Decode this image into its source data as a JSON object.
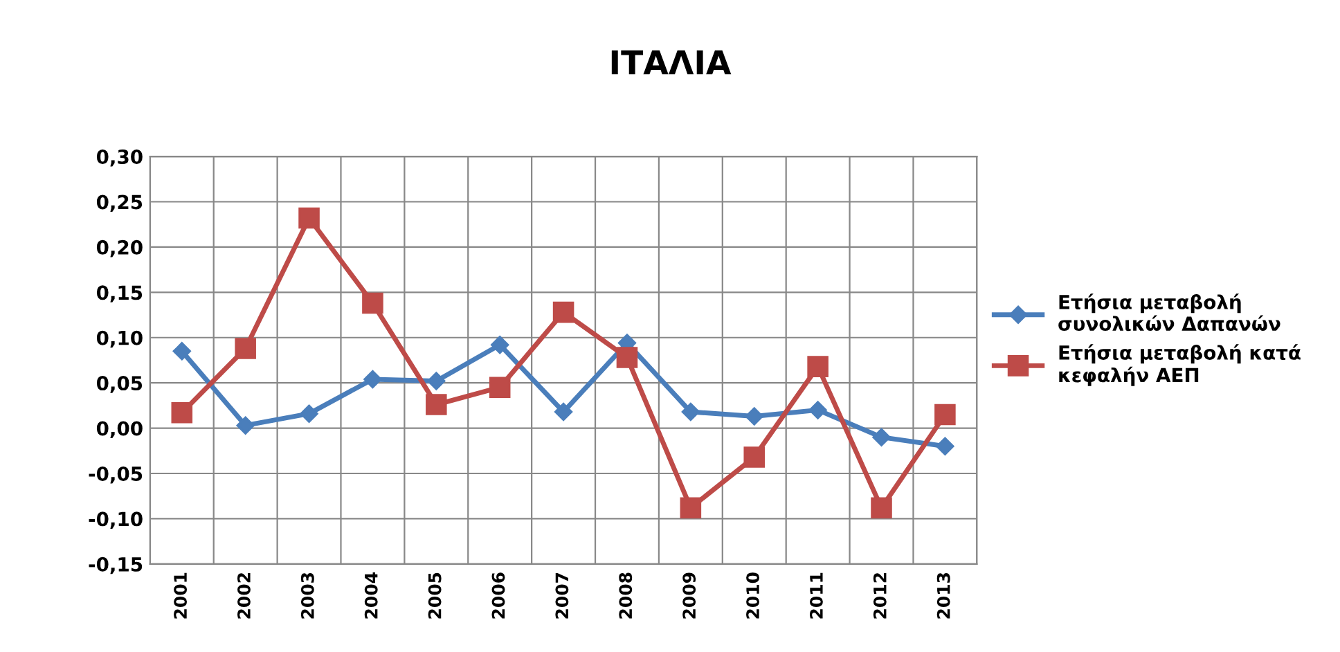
{
  "chart_data": {
    "type": "line",
    "title": "ΙΤΑΛΙΑ",
    "categories": [
      "2001",
      "2002",
      "2003",
      "2004",
      "2005",
      "2006",
      "2007",
      "2008",
      "2009",
      "2010",
      "2011",
      "2012",
      "2013"
    ],
    "series": [
      {
        "name": "Ετήσια μεταβολή συνολικών Δαπανών",
        "color": "#4a7ebb",
        "marker": "diamond",
        "values": [
          0.085,
          0.003,
          0.016,
          0.054,
          0.052,
          0.092,
          0.018,
          0.094,
          0.018,
          0.013,
          0.02,
          -0.01,
          -0.02
        ]
      },
      {
        "name": "Ετήσια μεταβολή κατά κεφαλήν ΑΕΠ",
        "color": "#be4b48",
        "marker": "square",
        "values": [
          0.017,
          0.088,
          0.232,
          0.138,
          0.026,
          0.045,
          0.128,
          0.078,
          -0.088,
          -0.032,
          0.068,
          -0.088,
          0.015
        ]
      }
    ],
    "ylim": [
      -0.15,
      0.3
    ],
    "yticks": [
      {
        "value": -0.15,
        "label": "-0,15"
      },
      {
        "value": -0.1,
        "label": "-0,10"
      },
      {
        "value": -0.05,
        "label": "-0,05"
      },
      {
        "value": 0.0,
        "label": "0,00"
      },
      {
        "value": 0.05,
        "label": "0,05"
      },
      {
        "value": 0.1,
        "label": "0,10"
      },
      {
        "value": 0.15,
        "label": "0,15"
      },
      {
        "value": 0.2,
        "label": "0,20"
      },
      {
        "value": 0.25,
        "label": "0,25"
      },
      {
        "value": 0.3,
        "label": "0,30"
      }
    ],
    "grid": true,
    "legend": "right",
    "line_style": "solid"
  }
}
